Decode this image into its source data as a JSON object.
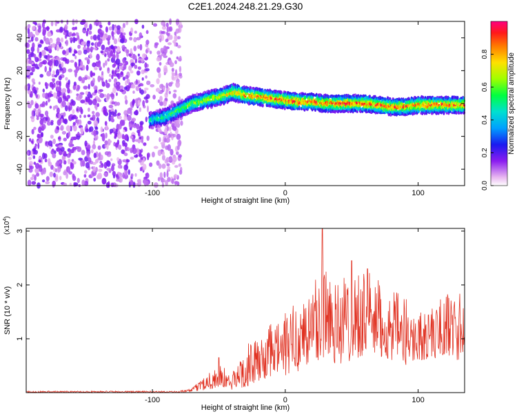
{
  "chart_data": [
    {
      "type": "heatmap",
      "title": "C2E1.2024.248.21.29.G30",
      "xlabel": "Height of straight line (km)",
      "ylabel": "Frequency (Hz)",
      "xlim": [
        -195,
        135
      ],
      "ylim": [
        -50,
        50
      ],
      "xticks": [
        -100,
        0,
        100
      ],
      "yticks": [
        -40,
        -20,
        0,
        20,
        40
      ],
      "colorbar": {
        "label": "Normalized spectral amplitude",
        "range": [
          0,
          1
        ],
        "ticks": [
          "0.0",
          "0.2",
          "0.4",
          "0.6",
          "0.8"
        ],
        "tick_values": [
          0.0,
          0.2,
          0.4,
          0.6,
          0.8
        ]
      },
      "ridge": {
        "description_values": "dominant frequency track (Hz) vs height (km)",
        "x": [
          -100,
          -90,
          -80,
          -70,
          -60,
          -50,
          -45,
          -40,
          -35,
          -30,
          -20,
          -10,
          0,
          10,
          20,
          30,
          40,
          50,
          60,
          70,
          80,
          90,
          100,
          110,
          120,
          130
        ],
        "y": [
          -10,
          -8,
          -4,
          0,
          2,
          4,
          5,
          7,
          6,
          5,
          4,
          3,
          2,
          1,
          1,
          0,
          0,
          0,
          0,
          -1,
          -2,
          -2,
          -1,
          -1,
          -1,
          -1
        ]
      }
    },
    {
      "type": "line",
      "xlabel": "Height of straight line (km)",
      "ylabel": "SNR (10 * v/v)",
      "y_scale_label": "(x10",
      "y_scale_exp": "4",
      "y_scale_close": ")",
      "xlim": [
        -195,
        135
      ],
      "ylim": [
        0,
        3.05
      ],
      "xticks": [
        -100,
        0,
        100
      ],
      "yticks": [
        1,
        2,
        3
      ],
      "series": [
        {
          "name": "SNR",
          "color": "#e03020",
          "envelope_x": [
            -195,
            -80,
            -70,
            -60,
            -50,
            -40,
            -30,
            -20,
            -10,
            0,
            10,
            20,
            30,
            40,
            50,
            60,
            70,
            80,
            90,
            100,
            110,
            120,
            130,
            135
          ],
          "envelope_max": [
            0.03,
            0.03,
            0.08,
            0.35,
            0.55,
            0.35,
            0.9,
            1.0,
            1.3,
            1.5,
            1.8,
            2.0,
            3.0,
            2.1,
            2.4,
            2.3,
            2.1,
            1.9,
            1.8,
            1.5,
            1.6,
            1.85,
            1.9,
            1.9
          ],
          "envelope_min": [
            0.0,
            0.0,
            0.02,
            0.05,
            0.08,
            0.05,
            0.1,
            0.2,
            0.3,
            0.3,
            0.4,
            0.5,
            0.6,
            0.5,
            0.6,
            0.7,
            0.6,
            0.6,
            0.5,
            0.6,
            0.6,
            0.7,
            0.6,
            0.5
          ],
          "peaks": [
            {
              "x": 28,
              "y": 3.05
            },
            {
              "x": 50,
              "y": 2.45
            },
            {
              "x": 62,
              "y": 2.3
            },
            {
              "x": -50,
              "y": 0.65
            }
          ]
        }
      ]
    }
  ]
}
